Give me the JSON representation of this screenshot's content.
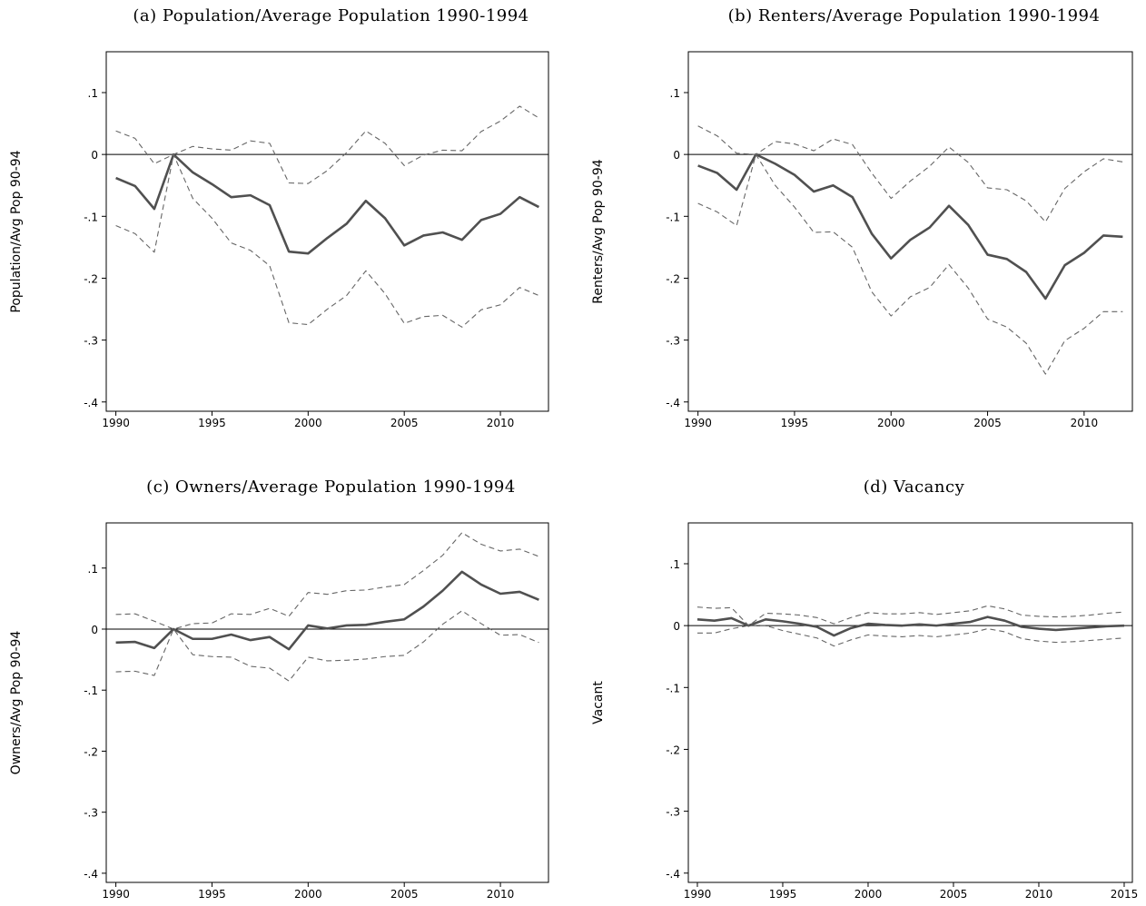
{
  "chart_data": [
    {
      "type": "line",
      "title": "(a) Population/Average Population 1990-1994",
      "ylabel": "Population/Avg Pop 90-94",
      "x": [
        1990,
        1991,
        1992,
        1993,
        1994,
        1995,
        1996,
        1997,
        1998,
        1999,
        2000,
        2001,
        2002,
        2003,
        2004,
        2005,
        2006,
        2007,
        2008,
        2009,
        2010,
        2011,
        2012
      ],
      "xlim": [
        1989.5,
        2012.5
      ],
      "xticks": [
        1990,
        1995,
        2000,
        2005,
        2010
      ],
      "ylim": [
        -0.415,
        0.166
      ],
      "yticks": [
        {
          "value": 0.1,
          "label": ".1"
        },
        0,
        {
          "value": -0.1,
          "label": "-.1"
        },
        {
          "value": -0.2,
          "label": "-.2"
        },
        {
          "value": -0.3,
          "label": "-.3"
        },
        {
          "value": -0.4,
          "label": "-.4"
        }
      ],
      "refline": 0,
      "series": [
        {
          "color": "#505050",
          "style": "solid",
          "values": [
            -0.038,
            -0.051,
            -0.088,
            0,
            -0.029,
            -0.048,
            -0.069,
            -0.066,
            -0.082,
            -0.157,
            -0.16,
            -0.135,
            -0.112,
            -0.075,
            -0.103,
            -0.147,
            -0.131,
            -0.126,
            -0.138,
            -0.106,
            -0.096,
            -0.069,
            -0.085
          ]
        },
        {
          "color": "#666666",
          "style": "dashed",
          "values": [
            0.038,
            0.026,
            -0.015,
            0,
            0.013,
            0.009,
            0.007,
            0.022,
            0.018,
            -0.046,
            -0.047,
            -0.026,
            0.003,
            0.038,
            0.018,
            -0.018,
            -0.001,
            0.007,
            0.006,
            0.037,
            0.054,
            0.078,
            0.059
          ]
        },
        {
          "color": "#666666",
          "style": "dashed",
          "values": [
            -0.115,
            -0.128,
            -0.158,
            0,
            -0.071,
            -0.103,
            -0.143,
            -0.155,
            -0.18,
            -0.272,
            -0.275,
            -0.25,
            -0.228,
            -0.188,
            -0.225,
            -0.273,
            -0.262,
            -0.26,
            -0.279,
            -0.251,
            -0.243,
            -0.215,
            -0.228
          ]
        }
      ]
    },
    {
      "type": "line",
      "title": "(b) Renters/Average Population 1990-1994",
      "ylabel": "Renters/Avg Pop 90-94",
      "x": [
        1990,
        1991,
        1992,
        1993,
        1994,
        1995,
        1996,
        1997,
        1998,
        1999,
        2000,
        2001,
        2002,
        2003,
        2004,
        2005,
        2006,
        2007,
        2008,
        2009,
        2010,
        2011,
        2012
      ],
      "xlim": [
        1989.5,
        2012.5
      ],
      "xticks": [
        1990,
        1995,
        2000,
        2005,
        2010
      ],
      "ylim": [
        -0.415,
        0.166
      ],
      "yticks": [
        {
          "value": 0.1,
          "label": ".1"
        },
        0,
        {
          "value": -0.1,
          "label": "-.1"
        },
        {
          "value": -0.2,
          "label": "-.2"
        },
        {
          "value": -0.3,
          "label": "-.3"
        },
        {
          "value": -0.4,
          "label": "-.4"
        }
      ],
      "refline": 0,
      "series": [
        {
          "color": "#505050",
          "style": "solid",
          "values": [
            -0.018,
            -0.03,
            -0.057,
            0,
            -0.015,
            -0.033,
            -0.06,
            -0.05,
            -0.069,
            -0.128,
            -0.168,
            -0.138,
            -0.118,
            -0.083,
            -0.114,
            -0.162,
            -0.169,
            -0.19,
            -0.233,
            -0.179,
            -0.159,
            -0.131,
            -0.133
          ]
        },
        {
          "color": "#666666",
          "style": "dashed",
          "values": [
            0.046,
            0.03,
            0.002,
            0,
            0.021,
            0.017,
            0.006,
            0.025,
            0.016,
            -0.03,
            -0.071,
            -0.043,
            -0.019,
            0.012,
            -0.013,
            -0.054,
            -0.057,
            -0.075,
            -0.109,
            -0.055,
            -0.028,
            -0.007,
            -0.012
          ]
        },
        {
          "color": "#666666",
          "style": "dashed",
          "values": [
            -0.079,
            -0.093,
            -0.115,
            0,
            -0.05,
            -0.085,
            -0.126,
            -0.125,
            -0.15,
            -0.222,
            -0.261,
            -0.23,
            -0.215,
            -0.178,
            -0.216,
            -0.266,
            -0.279,
            -0.305,
            -0.355,
            -0.301,
            -0.281,
            -0.254,
            -0.254
          ]
        }
      ]
    },
    {
      "type": "line",
      "title": "(c) Owners/Average Population 1990-1994",
      "ylabel": "Owners/Avg Pop 90-94",
      "x": [
        1990,
        1991,
        1992,
        1993,
        1994,
        1995,
        1996,
        1997,
        1998,
        1999,
        2000,
        2001,
        2002,
        2003,
        2004,
        2005,
        2006,
        2007,
        2008,
        2009,
        2010,
        2011,
        2012
      ],
      "xlim": [
        1989.5,
        2012.5
      ],
      "xticks": [
        1990,
        1995,
        2000,
        2005,
        2010
      ],
      "ylim": [
        -0.415,
        0.174
      ],
      "yticks": [
        {
          "value": 0.1,
          "label": ".1"
        },
        0,
        {
          "value": -0.1,
          "label": "-.1"
        },
        {
          "value": -0.2,
          "label": "-.2"
        },
        {
          "value": -0.3,
          "label": "-.3"
        },
        {
          "value": -0.4,
          "label": "-.4"
        }
      ],
      "refline": 0,
      "series": [
        {
          "color": "#505050",
          "style": "solid",
          "values": [
            -0.022,
            -0.021,
            -0.031,
            0,
            -0.016,
            -0.016,
            -0.009,
            -0.018,
            -0.013,
            -0.033,
            0.006,
            0.001,
            0.006,
            0.007,
            0.012,
            0.016,
            0.037,
            0.063,
            0.094,
            0.073,
            0.058,
            0.061,
            0.048
          ]
        },
        {
          "color": "#666666",
          "style": "dashed",
          "values": [
            0.024,
            0.025,
            0.013,
            0,
            0.009,
            0.01,
            0.025,
            0.024,
            0.034,
            0.021,
            0.06,
            0.057,
            0.063,
            0.064,
            0.069,
            0.073,
            0.096,
            0.121,
            0.158,
            0.139,
            0.128,
            0.131,
            0.119
          ]
        },
        {
          "color": "#666666",
          "style": "dashed",
          "values": [
            -0.07,
            -0.069,
            -0.076,
            0,
            -0.042,
            -0.045,
            -0.046,
            -0.061,
            -0.064,
            -0.085,
            -0.046,
            -0.052,
            -0.051,
            -0.049,
            -0.045,
            -0.043,
            -0.021,
            0.008,
            0.03,
            0.009,
            -0.01,
            -0.009,
            -0.022
          ]
        }
      ]
    },
    {
      "type": "line",
      "title": "(d) Vacancy",
      "ylabel": "Vacant",
      "x": [
        1990,
        1991,
        1992,
        1993,
        1994,
        1995,
        1996,
        1997,
        1998,
        1999,
        2000,
        2001,
        2002,
        2003,
        2004,
        2005,
        2006,
        2007,
        2008,
        2009,
        2010,
        2011,
        2012,
        2013,
        2014,
        2015
      ],
      "xlim": [
        1989.47,
        2015.48
      ],
      "xticks": [
        1990,
        1995,
        2000,
        2005,
        2010,
        2015
      ],
      "ylim": [
        -0.415,
        0.166
      ],
      "yticks": [
        {
          "value": 0.1,
          "label": ".1"
        },
        0,
        {
          "value": -0.1,
          "label": "-.1"
        },
        {
          "value": -0.2,
          "label": "-.2"
        },
        {
          "value": -0.3,
          "label": "-.3"
        },
        {
          "value": -0.4,
          "label": "-.4"
        }
      ],
      "refline": 0,
      "series": [
        {
          "color": "#505050",
          "style": "solid",
          "values": [
            0.01,
            0.008,
            0.012,
            0,
            0.01,
            0.007,
            0.003,
            -0.002,
            -0.016,
            -0.004,
            0.003,
            0.001,
            0,
            0.002,
            0,
            0.003,
            0.006,
            0.014,
            0.008,
            -0.002,
            -0.005,
            -0.007,
            -0.005,
            -0.003,
            -0.001,
            0
          ]
        },
        {
          "color": "#666666",
          "style": "dashed",
          "values": [
            0.03,
            0.028,
            0.029,
            0,
            0.02,
            0.019,
            0.017,
            0.013,
            0.003,
            0.013,
            0.021,
            0.019,
            0.019,
            0.021,
            0.018,
            0.021,
            0.024,
            0.032,
            0.027,
            0.017,
            0.015,
            0.014,
            0.015,
            0.017,
            0.02,
            0.022
          ]
        },
        {
          "color": "#666666",
          "style": "dashed",
          "values": [
            -0.012,
            -0.012,
            -0.005,
            0,
            0,
            -0.008,
            -0.014,
            -0.02,
            -0.033,
            -0.023,
            -0.015,
            -0.017,
            -0.018,
            -0.016,
            -0.018,
            -0.015,
            -0.012,
            -0.005,
            -0.01,
            -0.021,
            -0.025,
            -0.027,
            -0.026,
            -0.024,
            -0.022,
            -0.02
          ]
        }
      ]
    }
  ]
}
